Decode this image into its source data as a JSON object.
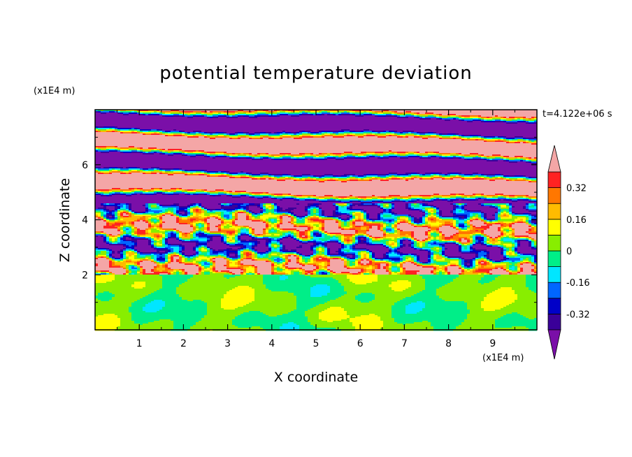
{
  "chart_data": {
    "type": "heatmap",
    "title": "potential temperature deviation",
    "xlabel": "X coordinate",
    "ylabel": "Z coordinate",
    "x_unit": "(x1E4 m)",
    "y_unit": "(x1E4 m)",
    "time_label": "t=4.122e+06 s",
    "xlim": [
      0,
      10
    ],
    "ylim": [
      0,
      8
    ],
    "x_ticks": [
      "1",
      "2",
      "3",
      "4",
      "5",
      "6",
      "7",
      "8",
      "9"
    ],
    "y_ticks": [
      "2",
      "4",
      "6"
    ],
    "colorbar": {
      "levels": [
        -0.4,
        -0.32,
        -0.24,
        -0.16,
        -0.08,
        0,
        0.08,
        0.16,
        0.24,
        0.32,
        0.4
      ],
      "labels": [
        "0.32",
        "0.16",
        "0",
        "-0.16",
        "-0.32"
      ],
      "colors": [
        "#7a0fa8",
        "#3a0099",
        "#0000c8",
        "#0066ff",
        "#00e6ff",
        "#00ee88",
        "#88ee00",
        "#ffff00",
        "#ffbb00",
        "#ff7700",
        "#ff2222",
        "#f4a6a6"
      ],
      "extend": "both"
    },
    "features": {
      "lower_layer": {
        "z_range": [
          0,
          2
        ],
        "values": "-0.08 to 0.08 (green / yellow-green)"
      },
      "upper_layer": {
        "z_range": [
          2,
          8
        ],
        "values": "alternating bands of < -0.4 (purple) and > 0.4 (pink), mixed colours near z=2 to 4.5"
      }
    }
  }
}
